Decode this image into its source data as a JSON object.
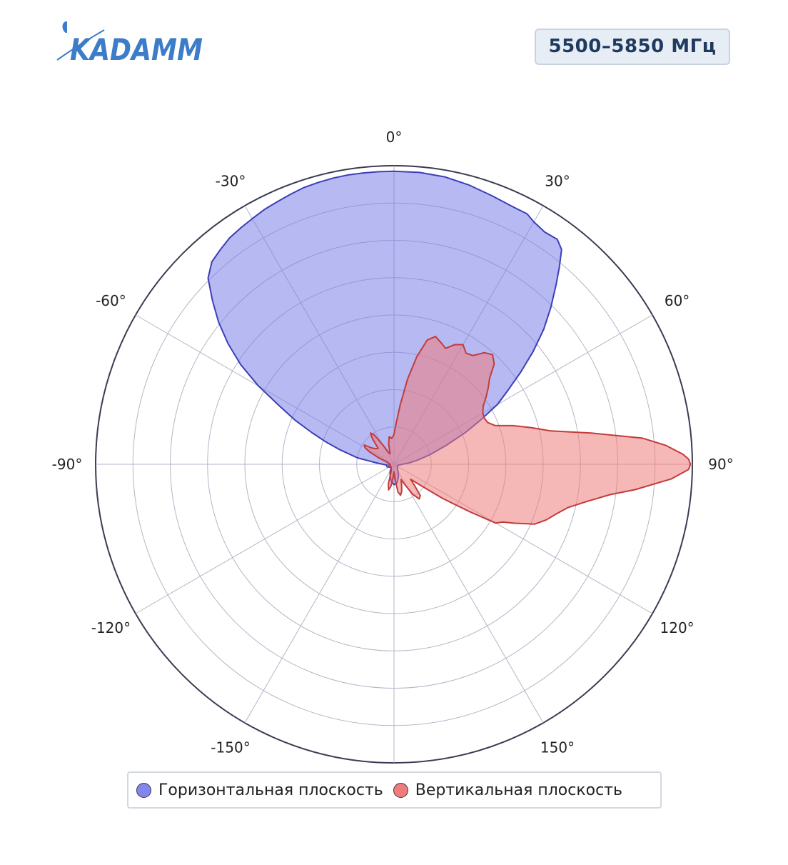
{
  "logo": {
    "text": "KADAMM"
  },
  "badge": {
    "text": "5500–5850 МГц"
  },
  "chart_data": {
    "type": "polar",
    "title": "",
    "angular_ticks": [
      "0°",
      "30°",
      "60°",
      "90°",
      "120°",
      "150°",
      "-150°",
      "-120°",
      "-90°",
      "-60°",
      "-30°"
    ],
    "angular_tick_degrees": [
      0,
      30,
      60,
      90,
      120,
      150,
      -150,
      -120,
      -90,
      -60,
      -30
    ],
    "radial_range": [
      0,
      8
    ],
    "radial_gridlines": [
      1,
      2,
      3,
      4,
      5,
      6,
      7,
      8
    ],
    "grid": true,
    "legend_position": "bottom",
    "series": [
      {
        "name": "Горизонтальная плоскость",
        "color": "#7b7fe8",
        "stroke": "#3b3fb8",
        "points": [
          [
            0,
            7.85
          ],
          [
            5,
            7.85
          ],
          [
            10,
            7.82
          ],
          [
            15,
            7.75
          ],
          [
            20,
            7.66
          ],
          [
            25,
            7.6
          ],
          [
            28,
            7.6
          ],
          [
            30,
            7.5
          ],
          [
            33,
            7.42
          ],
          [
            36,
            7.45
          ],
          [
            38,
            7.3
          ],
          [
            40,
            6.9
          ],
          [
            42,
            6.5
          ],
          [
            45,
            5.95
          ],
          [
            48,
            5.4
          ],
          [
            51,
            4.8
          ],
          [
            54,
            4.2
          ],
          [
            57,
            3.65
          ],
          [
            60,
            3.2
          ],
          [
            63,
            2.6
          ],
          [
            66,
            2.1
          ],
          [
            70,
            1.5
          ],
          [
            75,
            1.0
          ],
          [
            80,
            0.65
          ],
          [
            85,
            0.4
          ],
          [
            90,
            0.22
          ],
          [
            100,
            0.12
          ],
          [
            110,
            0.1
          ],
          [
            120,
            0.1
          ],
          [
            130,
            0.12
          ],
          [
            140,
            0.15
          ],
          [
            150,
            0.22
          ],
          [
            160,
            0.35
          ],
          [
            170,
            0.5
          ],
          [
            180,
            0.55
          ],
          [
            -170,
            0.45
          ],
          [
            -160,
            0.3
          ],
          [
            -150,
            0.2
          ],
          [
            -140,
            0.12
          ],
          [
            -130,
            0.12
          ],
          [
            -120,
            0.15
          ],
          [
            -110,
            0.2
          ],
          [
            -100,
            0.2
          ],
          [
            -95,
            0.2
          ],
          [
            -90,
            0.3
          ],
          [
            -85,
            0.5
          ],
          [
            -80,
            1.0
          ],
          [
            -75,
            1.5
          ],
          [
            -72,
            1.9
          ],
          [
            -69,
            2.35
          ],
          [
            -66,
            2.9
          ],
          [
            -63,
            3.45
          ],
          [
            -60,
            4.2
          ],
          [
            -57,
            4.9
          ],
          [
            -54,
            5.5
          ],
          [
            -51,
            6.05
          ],
          [
            -48,
            6.55
          ],
          [
            -45,
            7.05
          ],
          [
            -42,
            7.3
          ],
          [
            -39,
            7.4
          ],
          [
            -36,
            7.5
          ],
          [
            -33,
            7.55
          ],
          [
            -30,
            7.6
          ],
          [
            -27,
            7.66
          ],
          [
            -24,
            7.7
          ],
          [
            -21,
            7.75
          ],
          [
            -18,
            7.8
          ],
          [
            -15,
            7.82
          ],
          [
            -12,
            7.84
          ],
          [
            -9,
            7.85
          ],
          [
            -6,
            7.85
          ],
          [
            -3,
            7.85
          ]
        ]
      },
      {
        "name": "Вертикальная плоскость",
        "color": "#ef7b7b",
        "stroke": "#c33b3b",
        "points": [
          [
            0,
            0.8
          ],
          [
            3,
            1.1
          ],
          [
            6,
            1.6
          ],
          [
            9,
            2.3
          ],
          [
            12,
            2.95
          ],
          [
            15,
            3.45
          ],
          [
            18,
            3.6
          ],
          [
            21,
            3.5
          ],
          [
            24,
            3.4
          ],
          [
            27,
            3.6
          ],
          [
            30,
            3.7
          ],
          [
            33,
            3.55
          ],
          [
            36,
            3.6
          ],
          [
            39,
            3.85
          ],
          [
            42,
            3.95
          ],
          [
            45,
            3.8
          ],
          [
            48,
            3.45
          ],
          [
            51,
            3.25
          ],
          [
            54,
            3.05
          ],
          [
            57,
            2.85
          ],
          [
            60,
            2.75
          ],
          [
            63,
            2.72
          ],
          [
            66,
            2.75
          ],
          [
            69,
            2.9
          ],
          [
            72,
            3.35
          ],
          [
            75,
            3.8
          ],
          [
            78,
            4.3
          ],
          [
            81,
            5.35
          ],
          [
            84,
            6.7
          ],
          [
            86,
            7.3
          ],
          [
            88,
            7.75
          ],
          [
            89,
            7.9
          ],
          [
            90,
            7.95
          ],
          [
            91,
            7.9
          ],
          [
            93,
            7.45
          ],
          [
            96,
            6.5
          ],
          [
            98,
            5.85
          ],
          [
            101,
            5.25
          ],
          [
            104,
            4.8
          ],
          [
            107,
            4.55
          ],
          [
            110,
            4.35
          ],
          [
            113,
            4.1
          ],
          [
            116,
            3.6
          ],
          [
            118,
            3.3
          ],
          [
            120,
            3.15
          ],
          [
            122,
            2.4
          ],
          [
            125,
            1.6
          ],
          [
            128,
            0.95
          ],
          [
            132,
            0.6
          ],
          [
            136,
            0.8
          ],
          [
            140,
            1.1
          ],
          [
            144,
            1.15
          ],
          [
            148,
            0.95
          ],
          [
            152,
            0.6
          ],
          [
            155,
            0.45
          ],
          [
            160,
            0.6
          ],
          [
            164,
            0.75
          ],
          [
            168,
            0.85
          ],
          [
            172,
            0.75
          ],
          [
            176,
            0.4
          ],
          [
            180,
            0.2
          ],
          [
            184,
            0.35
          ],
          [
            188,
            0.6
          ],
          [
            192,
            0.7
          ],
          [
            196,
            0.55
          ],
          [
            200,
            0.25
          ],
          [
            208,
            0.15
          ],
          [
            220,
            0.12
          ],
          [
            240,
            0.1
          ],
          [
            255,
            0.1
          ],
          [
            262,
            0.15
          ],
          [
            268,
            0.1
          ],
          [
            275,
            0.12
          ],
          [
            282,
            0.15
          ],
          [
            288,
            0.2
          ],
          [
            293,
            0.45
          ],
          [
            297,
            0.75
          ],
          [
            300,
            0.9
          ],
          [
            303,
            0.95
          ],
          [
            306,
            0.75
          ],
          [
            310,
            0.65
          ],
          [
            315,
            0.6
          ],
          [
            320,
            0.9
          ],
          [
            323,
            1.05
          ],
          [
            326,
            0.95
          ],
          [
            330,
            0.6
          ],
          [
            335,
            0.35
          ],
          [
            340,
            0.3
          ],
          [
            345,
            0.55
          ],
          [
            350,
            0.75
          ],
          [
            355,
            0.7
          ],
          [
            358,
            0.75
          ]
        ]
      }
    ]
  },
  "legend": {
    "items": [
      {
        "label": "Горизонтальная плоскость",
        "color": "#8486ee"
      },
      {
        "label": "Вертикальная плоскость",
        "color": "#ef7b7b"
      }
    ]
  }
}
